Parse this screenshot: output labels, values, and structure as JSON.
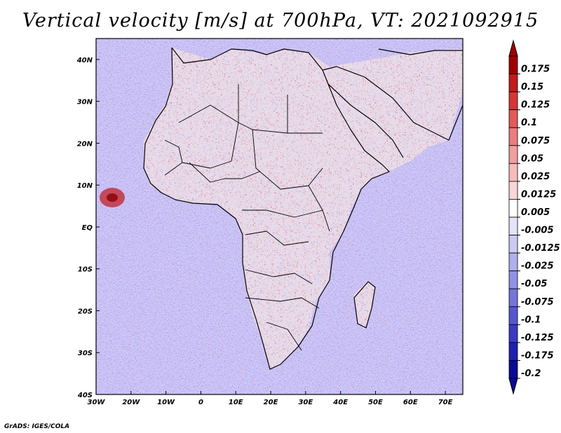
{
  "title": "Vertical velocity [m/s] at 700hPa, VT: 2021092915",
  "credit": "GrADS: IGES/COLA",
  "map": {
    "lon_range": [
      -30,
      75
    ],
    "lat_range": [
      -40,
      45
    ],
    "lon_ticks": [
      {
        "value": -30,
        "label": "30W"
      },
      {
        "value": -20,
        "label": "20W"
      },
      {
        "value": -10,
        "label": "10W"
      },
      {
        "value": 0,
        "label": "0"
      },
      {
        "value": 10,
        "label": "10E"
      },
      {
        "value": 20,
        "label": "20E"
      },
      {
        "value": 30,
        "label": "30E"
      },
      {
        "value": 40,
        "label": "40E"
      },
      {
        "value": 50,
        "label": "50E"
      },
      {
        "value": 60,
        "label": "60E"
      },
      {
        "value": 70,
        "label": "70E"
      }
    ],
    "lat_ticks": [
      {
        "value": 40,
        "label": "40N"
      },
      {
        "value": 30,
        "label": "30N"
      },
      {
        "value": 20,
        "label": "20N"
      },
      {
        "value": 10,
        "label": "10N"
      },
      {
        "value": 0,
        "label": "EQ"
      },
      {
        "value": -10,
        "label": "10S"
      },
      {
        "value": -20,
        "label": "20S"
      },
      {
        "value": -30,
        "label": "30S"
      },
      {
        "value": -40,
        "label": "40S"
      }
    ]
  },
  "colorbar": {
    "levels": [
      "0.175",
      "0.15",
      "0.125",
      "0.1",
      "0.075",
      "0.05",
      "0.025",
      "0.0125",
      "0.005",
      "-0.005",
      "-0.0125",
      "-0.025",
      "-0.05",
      "-0.075",
      "-0.1",
      "-0.125",
      "-0.175",
      "-0.2"
    ],
    "colors": [
      "#a00000",
      "#c41a1a",
      "#d83636",
      "#e35a5a",
      "#eb7d7d",
      "#f09e9e",
      "#f5bcbc",
      "#f9d6d6",
      "#ffffff",
      "#e4e4f8",
      "#cacaf2",
      "#b0b0ec",
      "#9292e4",
      "#7474da",
      "#5656cf",
      "#3a3ac2",
      "#2020b0",
      "#0a0a95"
    ]
  }
}
